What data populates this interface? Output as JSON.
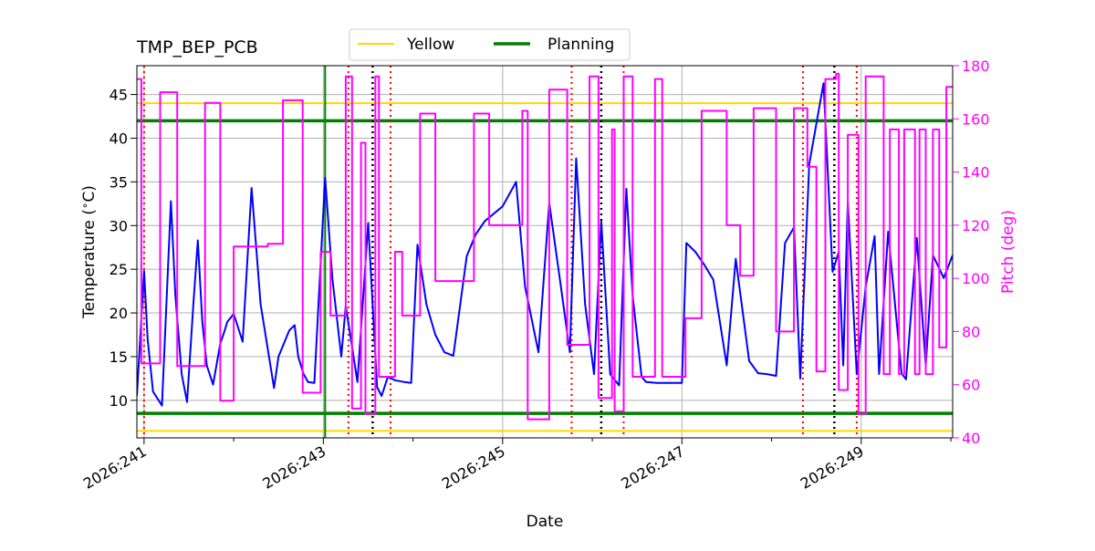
{
  "chart_data": {
    "type": "line",
    "title": "TMP_BEP_PCB",
    "xlabel": "Date",
    "ylabel": "Temperature ($^\\circ$C)",
    "ylabel_display": "Temperature (",
    "ylabel_unit": "C)",
    "y2label": "Pitch (deg)",
    "xlim": [
      240.92,
      250.02
    ],
    "ylim": [
      5.7,
      48.3
    ],
    "y2lim": [
      40,
      180
    ],
    "grid": true,
    "legend_position": "top-center",
    "x_ticks": [
      {
        "value": 241,
        "label": "2026:241"
      },
      {
        "value": 243,
        "label": "2026:243"
      },
      {
        "value": 245,
        "label": "2026:245"
      },
      {
        "value": 247,
        "label": "2026:247"
      },
      {
        "value": 249,
        "label": "2026:249"
      }
    ],
    "x_minor_ticks": [
      242,
      244,
      246,
      248,
      250
    ],
    "y_ticks": [
      10,
      15,
      20,
      25,
      30,
      35,
      40,
      45
    ],
    "y2_ticks": [
      40,
      60,
      80,
      100,
      120,
      140,
      160,
      180
    ],
    "legend": [
      {
        "label": "Yellow",
        "color": "#ffd700"
      },
      {
        "label": "Planning",
        "color": "#008000"
      }
    ],
    "limits": {
      "yellow": [
        6.5,
        44.0
      ],
      "planning": [
        8.5,
        42.0
      ],
      "planning_vertical_x": 243.02
    },
    "vertical_markers": {
      "red_dotted": [
        241.0,
        243.28,
        243.75,
        245.77,
        246.35,
        248.35,
        248.95
      ],
      "black_dotted": [
        243.55,
        246.1,
        248.7
      ]
    },
    "colors": {
      "temperature": "#0000ff",
      "pitch": "#ff00ff",
      "pitch_axis": "#ff00ff",
      "grid": "#b0b0b0",
      "red_marker": "#ff0000",
      "black_marker": "#000000"
    },
    "series": [
      {
        "name": "",
        "axis": "left",
        "color": "#0000ff",
        "x": [
          240.92,
          241.0,
          241.04,
          241.1,
          241.2,
          241.3,
          241.35,
          241.42,
          241.48,
          241.55,
          241.6,
          241.65,
          241.7,
          241.77,
          241.85,
          241.9,
          241.93,
          241.97,
          242.0,
          242.1,
          242.2,
          242.3,
          242.45,
          242.5,
          242.62,
          242.68,
          242.72,
          242.78,
          242.83,
          242.9,
          243.02,
          243.1,
          243.2,
          243.25,
          243.38,
          243.5,
          243.6,
          243.65,
          243.72,
          243.8,
          243.9,
          243.98,
          244.05,
          244.15,
          244.25,
          244.35,
          244.45,
          244.6,
          244.7,
          244.8,
          245.0,
          245.15,
          245.25,
          245.4,
          245.52,
          245.65,
          245.75,
          245.82,
          245.92,
          246.02,
          246.1,
          246.2,
          246.3,
          246.38,
          246.45,
          246.55,
          246.6,
          246.72,
          246.8,
          246.9,
          247.0,
          247.05,
          247.15,
          247.25,
          247.35,
          247.5,
          247.6,
          247.75,
          247.85,
          247.95,
          248.05,
          248.15,
          248.25,
          248.32,
          248.42,
          248.58,
          248.68,
          248.75,
          248.8,
          248.85,
          248.95,
          249.05,
          249.15,
          249.2,
          249.3,
          249.45,
          249.5,
          249.62,
          249.72,
          249.8,
          249.92,
          250.02
        ],
        "values": [
          10.5,
          24.8,
          17.0,
          11.0,
          9.4,
          32.8,
          22.0,
          13.0,
          9.8,
          21.0,
          28.3,
          19.0,
          14.0,
          11.8,
          16.5,
          18.0,
          19.0,
          19.5,
          19.9,
          16.7,
          34.3,
          21.0,
          11.4,
          15.0,
          18.0,
          18.6,
          15.0,
          13.0,
          12.1,
          12.0,
          35.5,
          24.0,
          15.0,
          20.8,
          12.1,
          30.3,
          11.5,
          10.5,
          12.7,
          12.3,
          12.1,
          12.0,
          27.8,
          21.0,
          17.5,
          15.5,
          15.1,
          26.5,
          29.0,
          30.5,
          32.2,
          35.0,
          23.0,
          15.5,
          32.6,
          23.0,
          15.5,
          37.7,
          21.0,
          13.0,
          30.5,
          13.0,
          11.7,
          34.2,
          22.0,
          12.7,
          12.1,
          12.0,
          12.0,
          12.0,
          12.0,
          28.0,
          27.0,
          25.5,
          23.8,
          14.0,
          26.2,
          14.5,
          13.1,
          13.0,
          12.8,
          28.0,
          29.8,
          12.5,
          37.0,
          46.3,
          24.7,
          27.0,
          14.0,
          32.8,
          13.0,
          23.0,
          28.8,
          13.0,
          29.3,
          13.1,
          12.4,
          28.6,
          14.0,
          26.6,
          24.0,
          26.6
        ]
      },
      {
        "name": "",
        "axis": "right",
        "color": "#ff00ff",
        "step": true,
        "x": [
          240.92,
          240.97,
          240.98,
          241.07,
          241.18,
          241.37,
          241.5,
          241.68,
          241.85,
          241.98,
          242.0,
          242.3,
          242.38,
          242.45,
          242.55,
          242.58,
          242.77,
          242.82,
          242.97,
          243.02,
          243.08,
          243.25,
          243.32,
          243.42,
          243.47,
          243.53,
          243.58,
          243.62,
          243.67,
          243.8,
          243.85,
          243.88,
          243.98,
          244.08,
          244.15,
          244.25,
          244.62,
          244.68,
          244.75,
          244.85,
          245.05,
          245.15,
          245.22,
          245.28,
          245.4,
          245.52,
          245.62,
          245.72,
          245.82,
          245.97,
          246.02,
          246.07,
          246.12,
          246.22,
          246.25,
          246.28,
          246.35,
          246.45,
          246.55,
          246.7,
          246.72,
          246.78,
          247.0,
          247.04,
          247.15,
          247.22,
          247.43,
          247.5,
          247.53,
          247.55,
          247.65,
          247.78,
          247.8,
          248.0,
          248.05,
          248.07,
          248.1,
          248.18,
          248.25,
          248.4,
          248.5,
          248.55,
          248.6,
          248.7,
          248.72,
          248.75,
          248.85,
          248.97,
          249.05,
          249.13,
          249.25,
          249.32,
          249.42,
          249.48,
          249.6,
          249.65,
          249.72,
          249.8,
          249.87,
          249.95
        ],
        "values": [
          175,
          68,
          68,
          68,
          170,
          67,
          67,
          166,
          54,
          54,
          112,
          112,
          113,
          113,
          167,
          167,
          57,
          57,
          110,
          110,
          86,
          176,
          51,
          151,
          49,
          49,
          176,
          63,
          63,
          110,
          110,
          86,
          86,
          162,
          162,
          99,
          99,
          162,
          162,
          120,
          120,
          120,
          163,
          47,
          47,
          171,
          171,
          75,
          75,
          176,
          176,
          55,
          55,
          156,
          50,
          50,
          176,
          63,
          63,
          175,
          175,
          63,
          63,
          85,
          85,
          163,
          163,
          120,
          120,
          120,
          101,
          101,
          164,
          164,
          80,
          80,
          80,
          80,
          164,
          142,
          65,
          65,
          175,
          175,
          177,
          58,
          154,
          49,
          176,
          176,
          64,
          156,
          64,
          156,
          64,
          156,
          64,
          156,
          74,
          172
        ]
      }
    ]
  }
}
